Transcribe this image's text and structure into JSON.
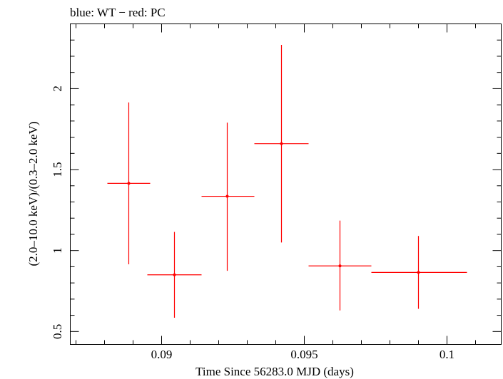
{
  "chart_data": {
    "type": "scatter",
    "title": "blue: WT − red: PC",
    "xlabel": "Time Since 56283.0 MJD (days)",
    "ylabel": "(2.0–10.0 keV)/(0.3–2.0 keV)",
    "xlim": [
      0.0868,
      0.1019
    ],
    "ylim": [
      0.42,
      2.4
    ],
    "x_ticks": [
      0.09,
      0.095,
      0.1
    ],
    "x_tick_labels": [
      "0.09",
      "0.095",
      "0.1"
    ],
    "y_ticks": [
      0.5,
      1,
      1.5,
      2
    ],
    "y_tick_labels": [
      "0.5",
      "1",
      "1.5",
      "2"
    ],
    "grid": false,
    "series": [
      {
        "name": "PC",
        "color": "#ff0000",
        "points": [
          {
            "x": 0.08885,
            "xlo": 0.0881,
            "xhi": 0.0896,
            "y": 1.415,
            "ylo": 0.915,
            "yhi": 1.915
          },
          {
            "x": 0.09045,
            "xlo": 0.0895,
            "xhi": 0.0914,
            "y": 0.85,
            "ylo": 0.585,
            "yhi": 1.115
          },
          {
            "x": 0.0923,
            "xlo": 0.0914,
            "xhi": 0.09325,
            "y": 1.335,
            "ylo": 0.875,
            "yhi": 1.79
          },
          {
            "x": 0.0942,
            "xlo": 0.09325,
            "xhi": 0.09515,
            "y": 1.66,
            "ylo": 1.05,
            "yhi": 2.27
          },
          {
            "x": 0.09625,
            "xlo": 0.09515,
            "xhi": 0.09735,
            "y": 0.905,
            "ylo": 0.63,
            "yhi": 1.185
          },
          {
            "x": 0.099,
            "xlo": 0.09735,
            "xhi": 0.1007,
            "y": 0.865,
            "ylo": 0.64,
            "yhi": 1.09
          }
        ]
      }
    ]
  }
}
